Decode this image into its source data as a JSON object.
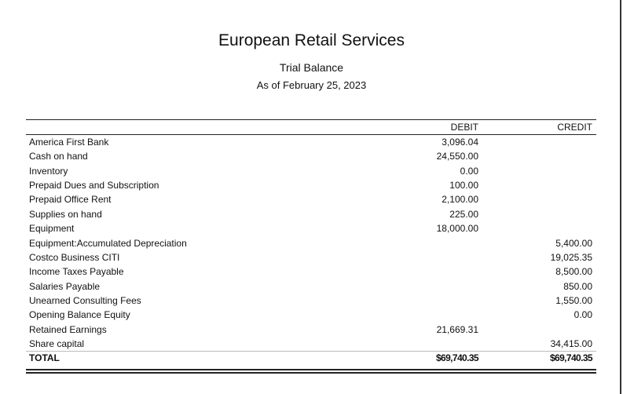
{
  "header": {
    "company": "European Retail Services",
    "report": "Trial Balance",
    "as_of": "As of February 25, 2023"
  },
  "columns": {
    "debit": "DEBIT",
    "credit": "CREDIT"
  },
  "rows": [
    {
      "account": "America First Bank",
      "debit": "3,096.04",
      "credit": ""
    },
    {
      "account": "Cash on hand",
      "debit": "24,550.00",
      "credit": ""
    },
    {
      "account": "Inventory",
      "debit": "0.00",
      "credit": ""
    },
    {
      "account": "Prepaid Dues and Subscription",
      "debit": "100.00",
      "credit": ""
    },
    {
      "account": "Prepaid Office Rent",
      "debit": "2,100.00",
      "credit": ""
    },
    {
      "account": "Supplies on hand",
      "debit": "225.00",
      "credit": ""
    },
    {
      "account": "Equipment",
      "debit": "18,000.00",
      "credit": ""
    },
    {
      "account": "Equipment:Accumulated Depreciation",
      "debit": "",
      "credit": "5,400.00"
    },
    {
      "account": "Costco Business CITI",
      "debit": "",
      "credit": "19,025.35"
    },
    {
      "account": "Income Taxes Payable",
      "debit": "",
      "credit": "8,500.00"
    },
    {
      "account": "Salaries Payable",
      "debit": "",
      "credit": "850.00"
    },
    {
      "account": "Unearned Consulting Fees",
      "debit": "",
      "credit": "1,550.00"
    },
    {
      "account": "Opening Balance Equity",
      "debit": "",
      "credit": "0.00"
    },
    {
      "account": "Retained Earnings",
      "debit": "21,669.31",
      "credit": ""
    },
    {
      "account": "Share capital",
      "debit": "",
      "credit": "34,415.00"
    }
  ],
  "total": {
    "label": "TOTAL",
    "debit": "$69,740.35",
    "credit": "$69,740.35"
  }
}
